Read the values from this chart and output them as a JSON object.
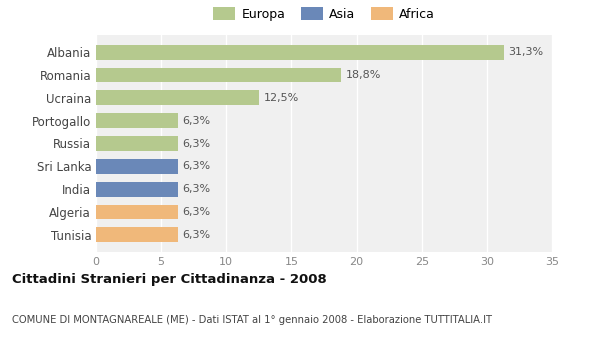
{
  "categories": [
    "Albania",
    "Romania",
    "Ucraina",
    "Portogallo",
    "Russia",
    "Sri Lanka",
    "India",
    "Algeria",
    "Tunisia"
  ],
  "values": [
    31.3,
    18.8,
    12.5,
    6.3,
    6.3,
    6.3,
    6.3,
    6.3,
    6.3
  ],
  "labels": [
    "31,3%",
    "18,8%",
    "12,5%",
    "6,3%",
    "6,3%",
    "6,3%",
    "6,3%",
    "6,3%",
    "6,3%"
  ],
  "colors": [
    "#b5c98e",
    "#b5c98e",
    "#b5c98e",
    "#b5c98e",
    "#b5c98e",
    "#6a88b8",
    "#6a88b8",
    "#f0b87a",
    "#f0b87a"
  ],
  "legend_labels": [
    "Europa",
    "Asia",
    "Africa"
  ],
  "legend_colors": [
    "#b5c98e",
    "#6a88b8",
    "#f0b87a"
  ],
  "title": "Cittadini Stranieri per Cittadinanza - 2008",
  "subtitle": "COMUNE DI MONTAGNAREALE (ME) - Dati ISTAT al 1° gennaio 2008 - Elaborazione TUTTITALIA.IT",
  "xlim": [
    0,
    35
  ],
  "xticks": [
    0,
    5,
    10,
    15,
    20,
    25,
    30,
    35
  ],
  "background_color": "#ffffff",
  "plot_bg_color": "#f0f0f0"
}
